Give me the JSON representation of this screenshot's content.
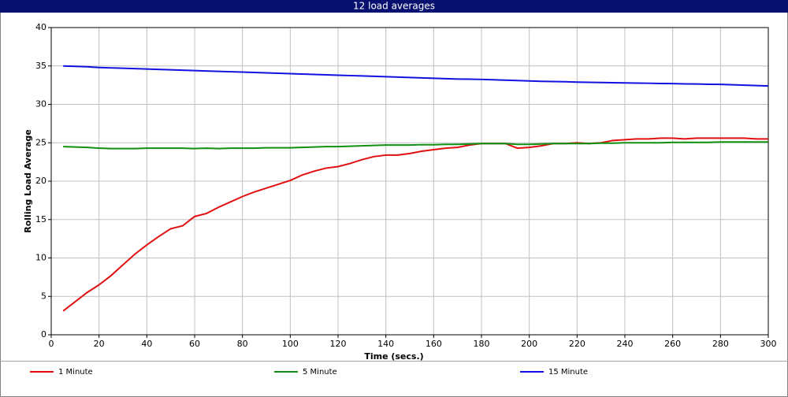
{
  "chart_data": {
    "type": "line",
    "title": "12 load averages",
    "x_label": "Time (secs.)",
    "y_label": "Rolling Load Average",
    "x": [
      5,
      10,
      15,
      20,
      25,
      30,
      35,
      40,
      45,
      50,
      55,
      60,
      65,
      70,
      75,
      80,
      85,
      90,
      95,
      100,
      105,
      110,
      115,
      120,
      125,
      130,
      135,
      140,
      145,
      150,
      155,
      160,
      165,
      170,
      175,
      180,
      185,
      190,
      195,
      200,
      205,
      210,
      215,
      220,
      225,
      230,
      235,
      240,
      245,
      250,
      255,
      260,
      265,
      270,
      275,
      280,
      285,
      290,
      295,
      300
    ],
    "series": [
      {
        "name": "1 Minute",
        "color": "#e01010",
        "values": [
          3.1,
          4.3,
          5.5,
          6.5,
          7.7,
          9.1,
          10.5,
          11.7,
          12.8,
          13.8,
          14.2,
          15.4,
          15.8,
          16.6,
          17.3,
          18.0,
          18.6,
          19.1,
          19.6,
          20.1,
          20.8,
          21.3,
          21.7,
          21.9,
          22.3,
          22.8,
          23.2,
          23.4,
          23.4,
          23.6,
          23.9,
          24.1,
          24.3,
          24.4,
          24.7,
          24.9,
          24.9,
          24.9,
          24.3,
          24.4,
          24.6,
          24.9,
          24.9,
          25.0,
          24.9,
          25.0,
          25.3,
          25.4,
          25.5,
          25.5,
          25.6,
          25.6,
          25.5,
          25.6,
          25.6,
          25.6,
          25.6,
          25.6,
          25.5,
          25.5
        ]
      },
      {
        "name": "5 Minute",
        "color": "#109010",
        "values": [
          24.5,
          24.45,
          24.4,
          24.3,
          24.25,
          24.25,
          24.25,
          24.3,
          24.3,
          24.3,
          24.3,
          24.25,
          24.3,
          24.25,
          24.3,
          24.3,
          24.3,
          24.35,
          24.35,
          24.35,
          24.4,
          24.45,
          24.5,
          24.5,
          24.55,
          24.6,
          24.65,
          24.7,
          24.7,
          24.7,
          24.75,
          24.75,
          24.8,
          24.8,
          24.85,
          24.9,
          24.9,
          24.9,
          24.8,
          24.8,
          24.85,
          24.9,
          24.9,
          24.9,
          24.9,
          24.95,
          24.95,
          25.0,
          25.0,
          25.0,
          25.0,
          25.05,
          25.05,
          25.05,
          25.05,
          25.1,
          25.1,
          25.1,
          25.1,
          25.1
        ]
      },
      {
        "name": "15 Minute",
        "color": "#1010e0",
        "values": [
          35.0,
          34.95,
          34.9,
          34.8,
          34.75,
          34.7,
          34.65,
          34.6,
          34.55,
          34.5,
          34.45,
          34.4,
          34.35,
          34.3,
          34.25,
          34.2,
          34.15,
          34.1,
          34.05,
          34.0,
          33.95,
          33.9,
          33.85,
          33.8,
          33.75,
          33.7,
          33.65,
          33.6,
          33.55,
          33.5,
          33.45,
          33.4,
          33.35,
          33.3,
          33.28,
          33.25,
          33.2,
          33.15,
          33.1,
          33.05,
          33.0,
          32.98,
          32.95,
          32.9,
          32.87,
          32.85,
          32.82,
          32.8,
          32.77,
          32.75,
          32.72,
          32.7,
          32.67,
          32.65,
          32.62,
          32.6,
          32.55,
          32.5,
          32.45,
          32.4
        ]
      }
    ],
    "xlim": [
      0,
      300
    ],
    "xticks": [
      0,
      20,
      40,
      60,
      80,
      100,
      120,
      140,
      160,
      180,
      200,
      220,
      240,
      260,
      280,
      300
    ],
    "ylim": [
      0,
      40
    ],
    "yticks": [
      0,
      5,
      10,
      15,
      20,
      25,
      30,
      35,
      40
    ],
    "grid": true,
    "legend": "bottom"
  }
}
